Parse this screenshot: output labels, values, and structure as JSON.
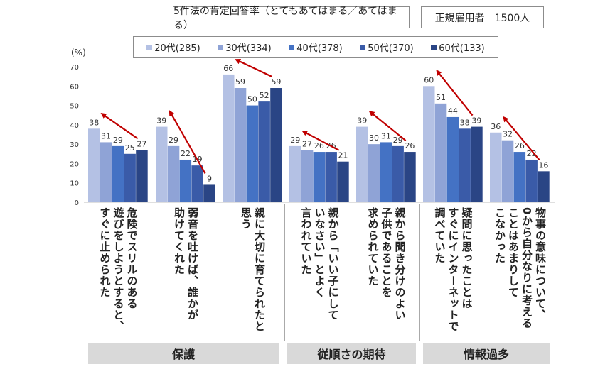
{
  "header": {
    "subtitle": "5件法の肯定回答率（とてもあてはまる／あてはまる）",
    "sample": "正規雇用者　1500人"
  },
  "chart_data": {
    "type": "bar",
    "ylabel": "(%)",
    "ylim": [
      0,
      70
    ],
    "yticks": [
      "0",
      "10",
      "20",
      "30",
      "40",
      "50",
      "60",
      "70"
    ],
    "legend_position": "top",
    "series": [
      {
        "name": "20代(285)",
        "color": "#b4c1e4",
        "values": [
          38,
          39,
          66,
          29,
          39,
          60,
          36
        ]
      },
      {
        "name": "30代(334)",
        "color": "#8fa3d6",
        "values": [
          31,
          29,
          59,
          27,
          30,
          51,
          32
        ]
      },
      {
        "name": "40代(378)",
        "color": "#4472c4",
        "values": [
          29,
          22,
          50,
          26,
          31,
          44,
          26
        ]
      },
      {
        "name": "50代(370)",
        "color": "#3a5ba8",
        "values": [
          25,
          19,
          52,
          26,
          29,
          38,
          22
        ]
      },
      {
        "name": "60代(133)",
        "color": "#2a4585",
        "values": [
          27,
          9,
          59,
          21,
          26,
          39,
          16
        ]
      }
    ],
    "categories": [
      "危険でスリルのある\n遊びをしようとすると、\nすぐに止められた",
      "弱音を吐けば、誰かが\n助けてくれた",
      "親に大切に育てられたと\n思う",
      "親から「いい子にして\nいなさい」とよく\n言われていた",
      "親から聞き分けのよい\n子供であることを\n求められていた",
      "疑問に思ったことは\nすぐにインターネットで\n調べていた",
      "物事の意味について、\n0から自分なりに考える\nことはあまりして\nこなかった"
    ],
    "groups": [
      "保護",
      "従順さの期待",
      "情報過多"
    ],
    "trend_arrows": "decreasing with age",
    "arrow_color": "#c00000"
  }
}
